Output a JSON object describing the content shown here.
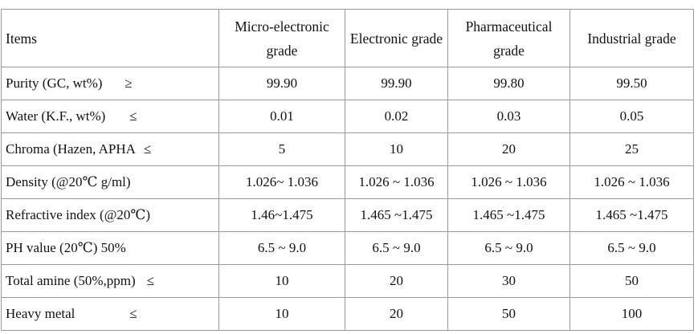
{
  "table": {
    "headers": [
      "Items",
      "Micro-electronic grade",
      "Electronic grade",
      "Pharmaceutical grade",
      "Industrial grade"
    ],
    "rows": [
      {
        "item": "Purity (GC, wt%)",
        "sym": "≥",
        "values": [
          "99.90",
          "99.90",
          "99.80",
          "99.50"
        ]
      },
      {
        "item": "Water (K.F., wt%)",
        "sym": "≤",
        "values": [
          "0.01",
          "0.02",
          "0.03",
          "0.05"
        ]
      },
      {
        "item": "Chroma (Hazen, APHA",
        "sym": "≤",
        "values": [
          "5",
          "10",
          "20",
          "25"
        ]
      },
      {
        "item": "Density (@20℃  g/ml)",
        "sym": "",
        "values": [
          "1.026~ 1.036",
          "1.026 ~ 1.036",
          "1.026 ~ 1.036",
          "1.026 ~ 1.036"
        ]
      },
      {
        "item": "Refractive index (@20℃)",
        "sym": "",
        "values": [
          "1.46~1.475",
          "1.465 ~1.475",
          "1.465 ~1.475",
          "1.465 ~1.475"
        ]
      },
      {
        "item": "PH value (20℃) 50%",
        "sym": "",
        "values": [
          "6.5 ~ 9.0",
          "6.5 ~ 9.0",
          "6.5 ~ 9.0",
          "6.5 ~ 9.0"
        ]
      },
      {
        "item": "Total amine (50%,ppm)",
        "sym": "≤",
        "values": [
          "10",
          "20",
          "30",
          "50"
        ]
      },
      {
        "item": "Heavy metal",
        "sym": "≤",
        "values": [
          "10",
          "20",
          "50",
          "100"
        ]
      }
    ]
  }
}
